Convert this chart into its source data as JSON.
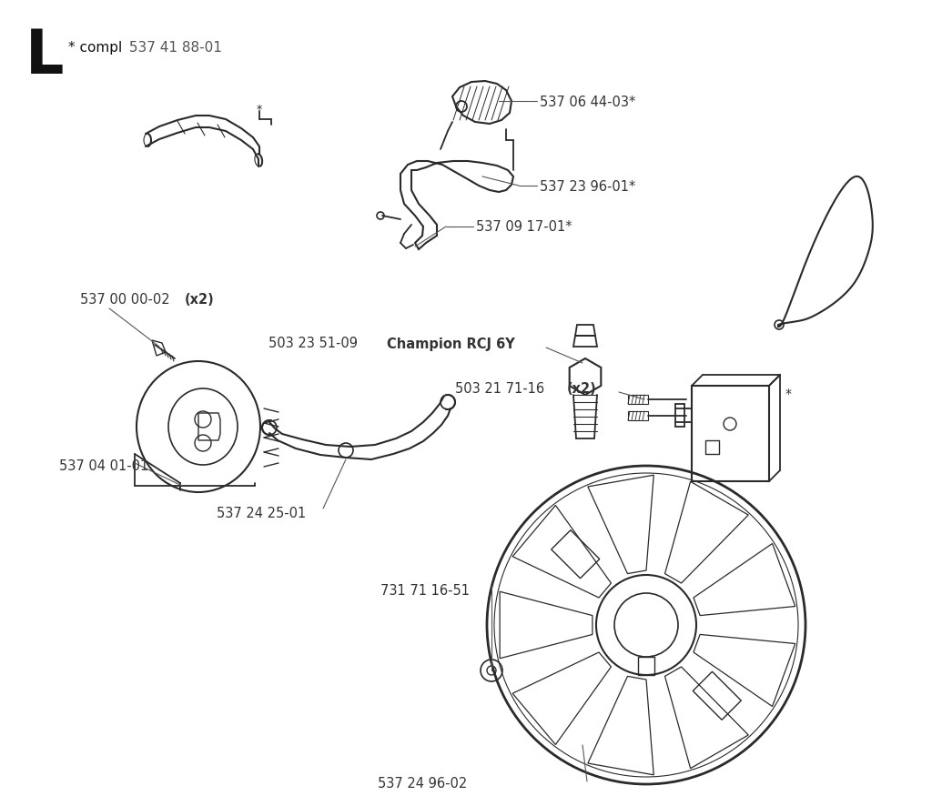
{
  "bg_color": "#ffffff",
  "line_color": "#2a2a2a",
  "label_color": "#333333",
  "figsize": [
    10.24,
    8.87
  ],
  "dpi": 100,
  "title": "L",
  "compl_text": "* compl",
  "compl_num": "537 41 88-01",
  "label_fontsize": 10.5,
  "title_fontsize": 42
}
